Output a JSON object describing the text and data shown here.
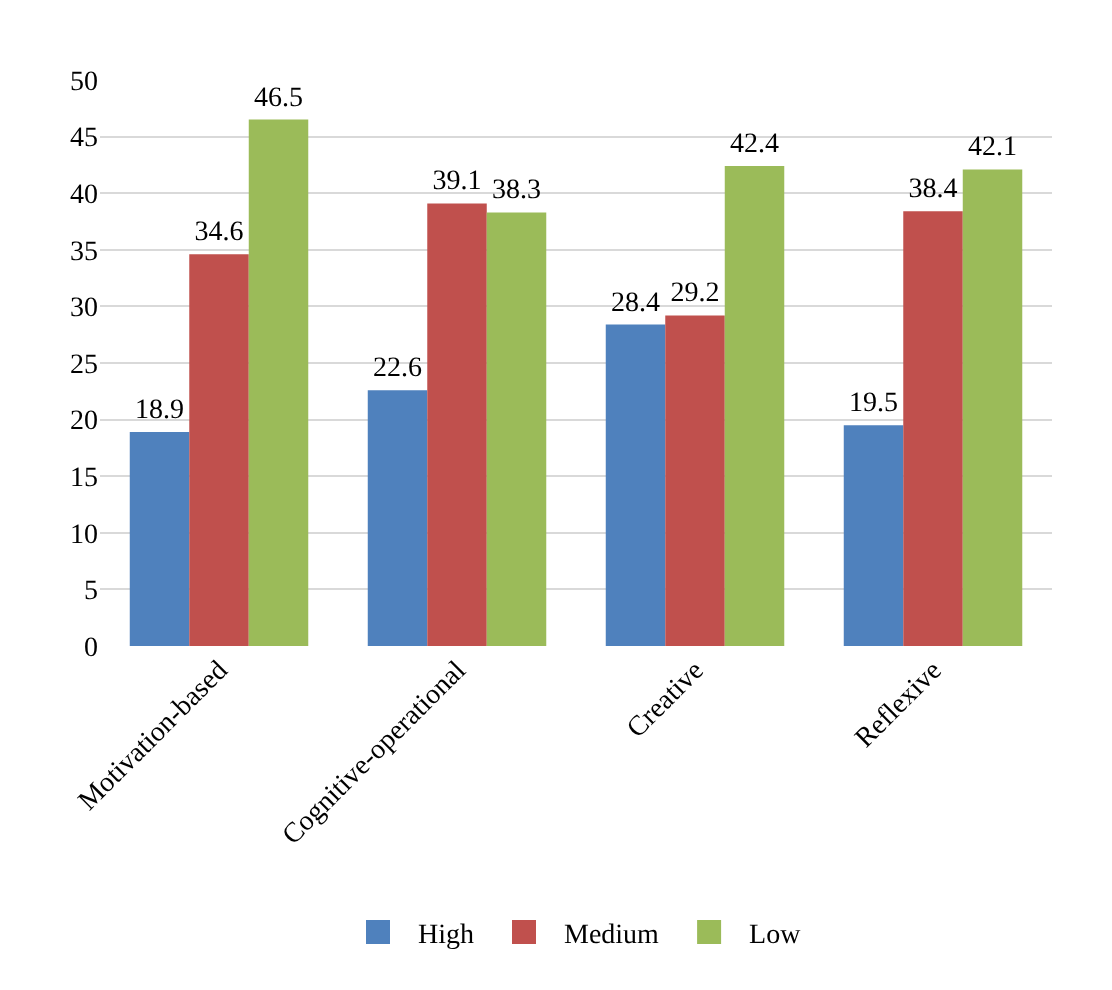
{
  "chart_data": {
    "type": "bar",
    "categories": [
      "Motivation-based",
      "Cognitive-operational",
      "Creative",
      "Reflexive"
    ],
    "series": [
      {
        "name": "High",
        "color": "#4f81bd",
        "values": [
          18.9,
          22.6,
          28.4,
          19.5
        ]
      },
      {
        "name": "Medium",
        "color": "#c0504d",
        "values": [
          34.6,
          39.1,
          29.2,
          38.4
        ]
      },
      {
        "name": "Low",
        "color": "#9bbb59",
        "values": [
          46.5,
          38.3,
          42.4,
          42.1
        ]
      }
    ],
    "ylim": [
      0,
      50
    ],
    "yticks": [
      0,
      5,
      10,
      15,
      20,
      25,
      30,
      35,
      40,
      45,
      50
    ],
    "grid": "y",
    "legend": "bottom",
    "data_labels": true
  }
}
